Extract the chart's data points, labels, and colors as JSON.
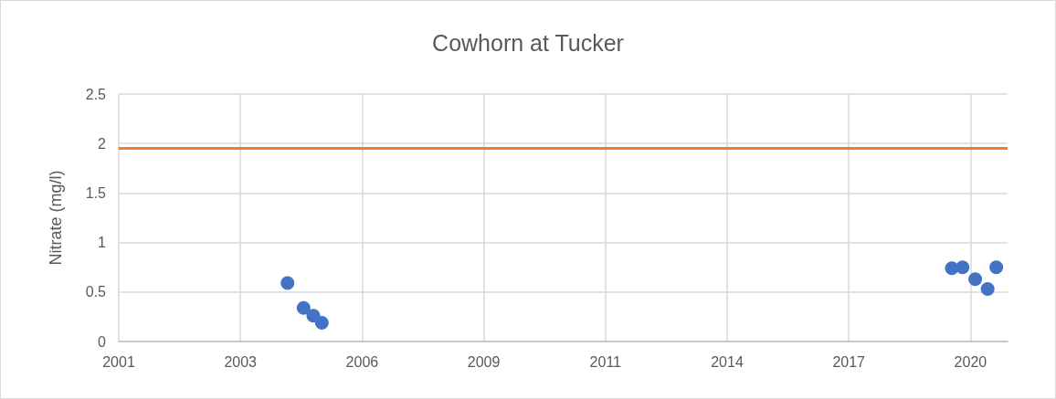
{
  "chart_data": {
    "type": "scatter",
    "title": "Cowhorn at Tucker",
    "ylabel": "Nitrate (mg/l)",
    "x": [
      "2004-10-19",
      "2005-02-28",
      "2005-05-19",
      "2005-07-28",
      "2019-10-01",
      "2019-12-28",
      "2020-04-10",
      "2020-07-21",
      "2020-09-30"
    ],
    "values": [
      0.59,
      0.34,
      0.26,
      0.19,
      0.74,
      0.75,
      0.63,
      0.53,
      0.75
    ],
    "color": "#4472c4",
    "marker": "circle",
    "xlim": [
      "2001-01-01",
      "2021-01-01"
    ],
    "xticks": [
      {
        "value": "2001-01-01",
        "label": "2001"
      },
      {
        "value": "2003-09-28",
        "label": "2003"
      },
      {
        "value": "2006-06-24",
        "label": "2006"
      },
      {
        "value": "2009-03-20",
        "label": "2009"
      },
      {
        "value": "2011-12-15",
        "label": "2011"
      },
      {
        "value": "2014-09-10",
        "label": "2014"
      },
      {
        "value": "2017-06-06",
        "label": "2017"
      },
      {
        "value": "2020-03-02",
        "label": "2020"
      }
    ],
    "ylim": [
      0,
      2.5
    ],
    "yticks": [
      0,
      0.5,
      1,
      1.5,
      2,
      2.5
    ],
    "ref_lines": [
      {
        "axis": "y",
        "value": 1.95,
        "color": "#ed7d31",
        "line_style": "solid"
      }
    ],
    "grid": true
  }
}
